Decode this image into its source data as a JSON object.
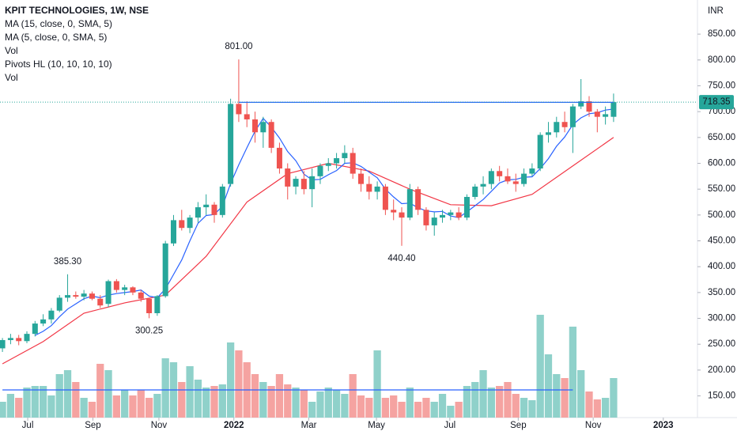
{
  "chart_data": {
    "type": "candlestick",
    "title": "KPIT TECHNOLOGIES, 1W, NSE",
    "currency": "INR",
    "indicators": [
      "Vol",
      "Pivots HL (10, 10, 10, 10)",
      "Vol"
    ],
    "up_color": "#26a69a",
    "down_color": "#ef5350",
    "volume_up_color": "#8fd1ca",
    "volume_down_color": "#f5a3a1",
    "open": [
      242,
      258,
      262,
      256,
      270,
      290,
      298,
      315,
      340,
      345,
      342,
      348,
      338,
      328,
      372,
      355,
      360,
      350,
      338,
      310,
      343,
      445,
      490,
      475,
      495,
      515,
      520,
      500,
      560,
      715,
      695,
      685,
      660,
      680,
      630,
      590,
      555,
      570,
      550,
      575,
      595,
      600,
      610,
      620,
      580,
      560,
      545,
      555,
      510,
      505,
      495,
      550,
      510,
      480,
      495,
      500,
      505,
      495,
      535,
      555,
      560,
      585,
      575,
      565,
      560,
      580,
      590,
      655,
      660,
      680,
      670,
      710,
      720,
      700,
      690,
      690
    ],
    "high": [
      262,
      270,
      268,
      275,
      295,
      308,
      320,
      345,
      385.3,
      352,
      355,
      352,
      345,
      375,
      376,
      365,
      362,
      355,
      340,
      345,
      450,
      500,
      510,
      500,
      525,
      540,
      525,
      560,
      725,
      801,
      720,
      700,
      690,
      685,
      640,
      600,
      575,
      585,
      590,
      600,
      610,
      620,
      635,
      630,
      590,
      575,
      565,
      560,
      530,
      515,
      560,
      555,
      515,
      505,
      510,
      510,
      515,
      540,
      560,
      575,
      590,
      595,
      590,
      580,
      590,
      600,
      660,
      680,
      690,
      700,
      715,
      763,
      730,
      705,
      710,
      735
    ],
    "low": [
      235,
      250,
      248,
      252,
      265,
      285,
      290,
      312,
      332,
      338,
      335,
      335,
      320,
      322,
      350,
      345,
      345,
      332,
      300.25,
      305,
      340,
      440,
      470,
      465,
      485,
      500,
      485,
      495,
      555,
      680,
      670,
      640,
      630,
      620,
      580,
      530,
      540,
      540,
      515,
      560,
      585,
      590,
      600,
      570,
      545,
      530,
      530,
      500,
      490,
      440.4,
      490,
      500,
      470,
      460,
      485,
      490,
      490,
      490,
      530,
      540,
      550,
      565,
      560,
      545,
      555,
      575,
      585,
      640,
      650,
      660,
      620,
      705,
      690,
      660,
      675,
      680
    ],
    "close": [
      258,
      262,
      256,
      270,
      290,
      298,
      315,
      340,
      345,
      342,
      348,
      338,
      325,
      372,
      355,
      360,
      350,
      338,
      310,
      343,
      445,
      490,
      475,
      495,
      515,
      520,
      500,
      555,
      715,
      695,
      685,
      660,
      680,
      630,
      590,
      555,
      570,
      550,
      575,
      595,
      600,
      610,
      620,
      580,
      560,
      545,
      555,
      510,
      505,
      495,
      550,
      510,
      480,
      495,
      500,
      505,
      495,
      535,
      555,
      560,
      585,
      575,
      565,
      560,
      580,
      590,
      655,
      660,
      680,
      670,
      710,
      720,
      700,
      690,
      695,
      718.35
    ],
    "volume": [
      20,
      30,
      25,
      38,
      40,
      40,
      28,
      55,
      60,
      45,
      25,
      20,
      68,
      60,
      28,
      35,
      28,
      35,
      25,
      30,
      75,
      70,
      45,
      65,
      48,
      38,
      40,
      42,
      95,
      85,
      70,
      55,
      45,
      40,
      55,
      42,
      38,
      35,
      20,
      33,
      38,
      35,
      30,
      55,
      28,
      25,
      85,
      25,
      28,
      20,
      38,
      20,
      25,
      20,
      30,
      15,
      20,
      40,
      45,
      60,
      38,
      40,
      45,
      30,
      25,
      22,
      130,
      80,
      55,
      50,
      115,
      60,
      33,
      23,
      25,
      50
    ],
    "series": [
      {
        "name": "MA (15, close, 0, SMA, 5)",
        "color": "#f23645",
        "x": [
          0,
          5,
          10,
          15,
          20,
          25,
          30,
          35,
          40,
          45,
          50,
          55,
          60,
          65,
          70,
          75
        ],
        "values": [
          212,
          255,
          310,
          330,
          345,
          420,
          525,
          580,
          600,
          585,
          550,
          520,
          518,
          540,
          595,
          650
        ]
      },
      {
        "name": "MA (5, close, 0, SMA, 5)",
        "color": "#2962ff",
        "values": [
          null,
          null,
          null,
          null,
          267,
          275,
          286,
          303,
          318,
          328,
          338,
          343,
          340,
          345,
          348,
          350,
          352,
          355,
          343,
          340,
          357,
          385,
          413,
          450,
          484,
          499,
          501,
          517,
          561,
          597,
          630,
          662,
          687,
          670,
          649,
          623,
          605,
          579,
          568,
          569,
          578,
          586,
          600,
          601,
          594,
          583,
          572,
          550,
          535,
          522,
          523,
          514,
          508,
          506,
          507,
          498,
          495,
          506,
          518,
          530,
          546,
          562,
          568,
          569,
          573,
          574,
          590,
          609,
          633,
          651,
          675,
          688,
          696,
          698,
          703,
          705
        ]
      }
    ],
    "pivot_line": {
      "value": 718,
      "from": 29,
      "to": 75,
      "color": "#2962ff"
    },
    "volume_ma": {
      "value": 35,
      "from": 0,
      "to": 70,
      "color": "#2962ff"
    },
    "annotations": [
      {
        "label": "801.00",
        "index": 29,
        "anchor": "high"
      },
      {
        "label": "385.30",
        "index": 8,
        "anchor": "high"
      },
      {
        "label": "300.25",
        "index": 18,
        "anchor": "low"
      },
      {
        "label": "440.40",
        "index": 49,
        "anchor": "low"
      }
    ],
    "xlim": [
      -0.3,
      85.1
    ],
    "xticks": [
      {
        "value": 3.1,
        "label": "Jul"
      },
      {
        "value": 11.1,
        "label": "Sep"
      },
      {
        "value": 19.2,
        "label": "Nov"
      },
      {
        "value": 28.4,
        "label": "2022"
      },
      {
        "value": 37.6,
        "label": "Mar"
      },
      {
        "value": 45.9,
        "label": "May"
      },
      {
        "value": 54.9,
        "label": "Jul"
      },
      {
        "value": 63.3,
        "label": "Sep"
      },
      {
        "value": 72.5,
        "label": "Nov"
      },
      {
        "value": 81.1,
        "label": "2023"
      }
    ],
    "ylim": [
      108,
      916
    ],
    "yticks": [
      {
        "value": 150,
        "label": "150.00"
      },
      {
        "value": 200,
        "label": "200.00"
      },
      {
        "value": 250,
        "label": "250.00"
      },
      {
        "value": 300,
        "label": "300.00"
      },
      {
        "value": 350,
        "label": "350.00"
      },
      {
        "value": 400,
        "label": "400.00"
      },
      {
        "value": 450,
        "label": "450.00"
      },
      {
        "value": 500,
        "label": "500.00"
      },
      {
        "value": 550,
        "label": "550.00"
      },
      {
        "value": 600,
        "label": "600.00"
      },
      {
        "value": 650,
        "label": "650.00"
      },
      {
        "value": 700,
        "label": "700.00"
      },
      {
        "value": 750,
        "label": "750.00"
      },
      {
        "value": 800,
        "label": "800.00"
      },
      {
        "value": 850,
        "label": "850.00"
      }
    ],
    "y2lim": [
      0,
      140
    ]
  }
}
